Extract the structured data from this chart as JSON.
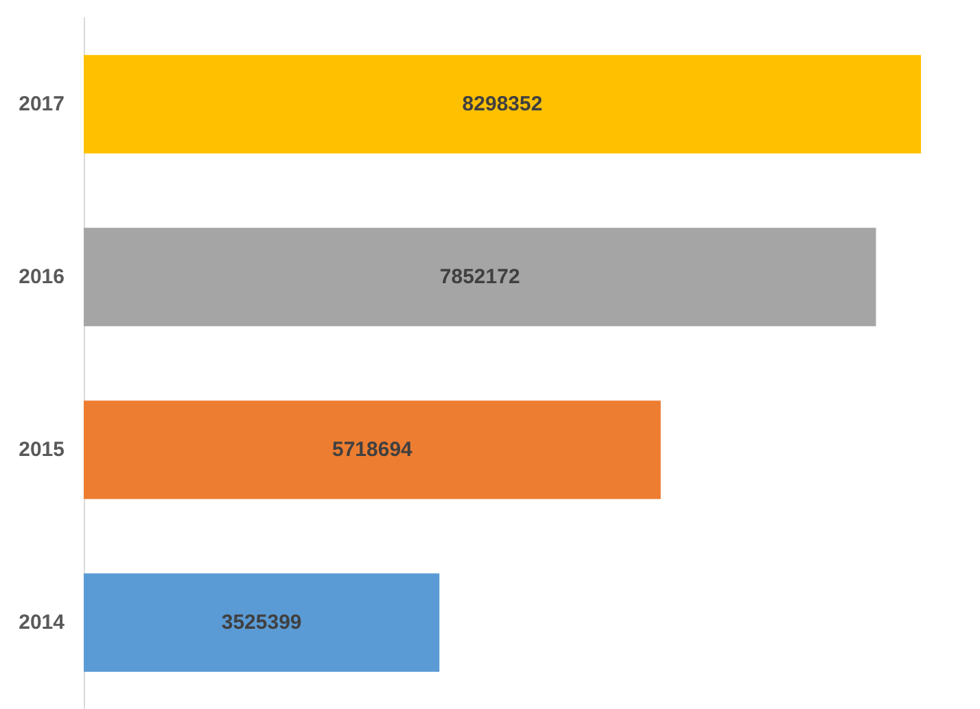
{
  "chart_data": {
    "type": "bar",
    "orientation": "horizontal",
    "categories": [
      "2017",
      "2016",
      "2015",
      "2014"
    ],
    "values": [
      8298352,
      7852172,
      5718694,
      3525399
    ],
    "colors": [
      "#ffc000",
      "#a5a5a5",
      "#ed7d31",
      "#5b9bd5"
    ],
    "data_labels": true
  }
}
